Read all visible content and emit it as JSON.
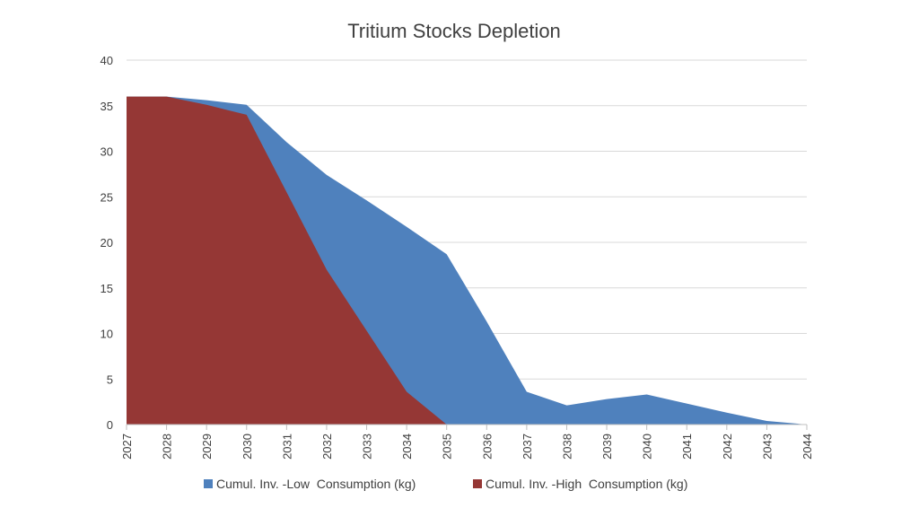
{
  "chart_data": {
    "type": "area",
    "title": "Tritium Stocks Depletion",
    "xlabel": "",
    "ylabel": "",
    "ylim": [
      0,
      40
    ],
    "y_ticks": [
      0,
      5,
      10,
      15,
      20,
      25,
      30,
      35,
      40
    ],
    "grid": true,
    "legend": "bottom",
    "categories": [
      "2027",
      "2028",
      "2029",
      "2030",
      "2031",
      "2032",
      "2033",
      "2034",
      "2035",
      "2036",
      "2037",
      "2038",
      "2039",
      "2040",
      "2041",
      "2042",
      "2043",
      "2044"
    ],
    "series": [
      {
        "name": "Cumul. Inv. -Low  Consumption (kg)",
        "color": "#4f81bd",
        "values": [
          36,
          36,
          35.6,
          35.1,
          31,
          27.4,
          24.6,
          21.7,
          18.7,
          11.3,
          3.6,
          2.1,
          2.8,
          3.3,
          2.3,
          1.3,
          0.4,
          0
        ]
      },
      {
        "name": "Cumul. Inv. -High  Consumption (kg)",
        "color": "#953735",
        "values": [
          36,
          36,
          35.1,
          34,
          25.5,
          17,
          10.3,
          3.6,
          0,
          0,
          0,
          0,
          0,
          0,
          0,
          0,
          0,
          0
        ]
      }
    ]
  }
}
